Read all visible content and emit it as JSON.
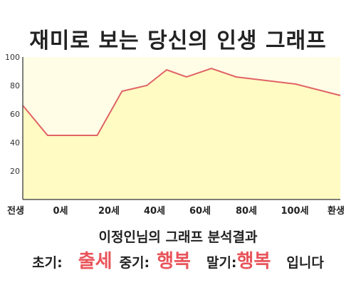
{
  "chart_data": {
    "type": "area",
    "title": "재미로 보는 당신의 인생 그래프",
    "x_categories": [
      "전생",
      "0세",
      "20세",
      "40세",
      "60세",
      "80세",
      "100세",
      "환생"
    ],
    "y_ticks": [
      20,
      40,
      60,
      80,
      100
    ],
    "ylim": [
      0,
      100
    ],
    "grid": false,
    "series": [
      {
        "points": [
          {
            "x": -10,
            "y": 66
          },
          {
            "x": 0,
            "y": 45
          },
          {
            "x": 20,
            "y": 45
          },
          {
            "x": 30,
            "y": 76
          },
          {
            "x": 40,
            "y": 80
          },
          {
            "x": 48,
            "y": 91
          },
          {
            "x": 56,
            "y": 86
          },
          {
            "x": 66,
            "y": 92
          },
          {
            "x": 76,
            "y": 86
          },
          {
            "x": 100,
            "y": 81
          },
          {
            "x": 118,
            "y": 73
          }
        ]
      }
    ],
    "colors": {
      "fill": "#fffbc2",
      "line": "#e06366",
      "plot_bg": "#fffde6"
    }
  },
  "footer": {
    "line1": "이정인님의 그래프 분석결과",
    "early_label": "초기:",
    "early_value": "출세",
    "middle_label": "중기:",
    "middle_value": "행복",
    "late_label": "말기:",
    "late_value": "행복",
    "ending": "입니다"
  }
}
